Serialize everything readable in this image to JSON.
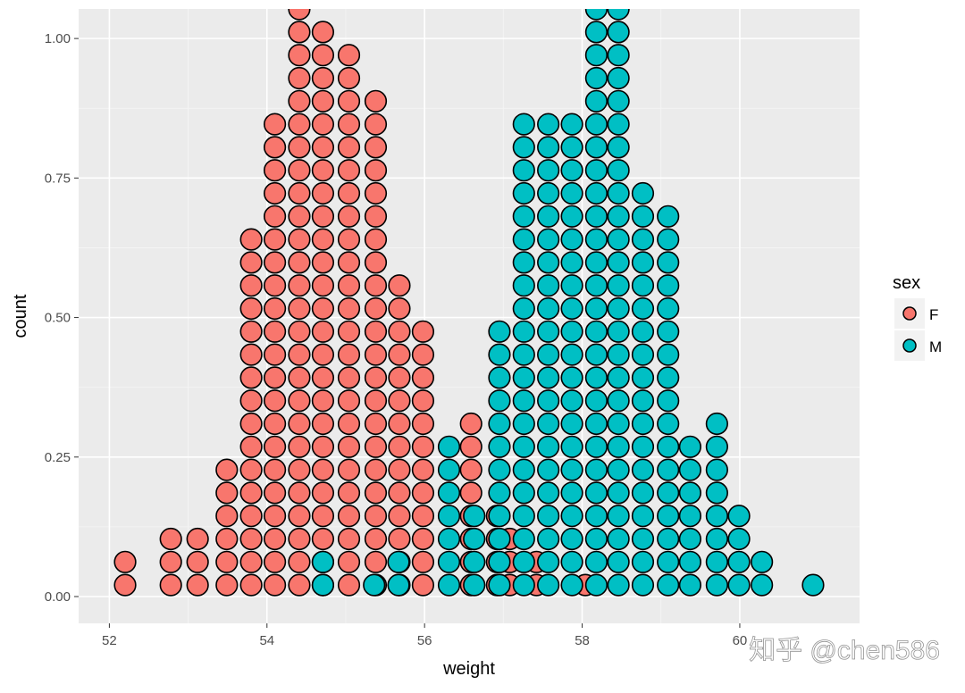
{
  "chart_data": {
    "type": "dotplot",
    "xlabel": "weight",
    "ylabel": "count",
    "xlim": [
      51.61,
      61.52
    ],
    "ylim": [
      -0.048,
      1.053
    ],
    "x_ticks": [
      52,
      54,
      56,
      58,
      60
    ],
    "x_tick_labels": [
      "52",
      "54",
      "56",
      "58",
      "60"
    ],
    "y_ticks": [
      0,
      0.25,
      0.5,
      0.75,
      1.0
    ],
    "y_tick_labels": [
      "0.00",
      "0.25",
      "0.50",
      "0.75",
      "1.00"
    ],
    "grid": true,
    "legend": {
      "title": "sex",
      "position": "right",
      "entries": [
        "F",
        "M"
      ]
    },
    "series": [
      {
        "name": "F",
        "color": "#F8766D",
        "stacks": [
          {
            "x": 52.2,
            "dots": 2
          },
          {
            "x": 52.78,
            "dots": 3
          },
          {
            "x": 53.12,
            "dots": 3
          },
          {
            "x": 53.49,
            "dots": 6
          },
          {
            "x": 53.8,
            "dots": 16
          },
          {
            "x": 54.1,
            "dots": 21
          },
          {
            "x": 54.41,
            "dots": 26
          },
          {
            "x": 54.71,
            "dots": 25
          },
          {
            "x": 55.04,
            "dots": 24
          },
          {
            "x": 55.38,
            "dots": 22
          },
          {
            "x": 55.68,
            "dots": 14
          },
          {
            "x": 55.98,
            "dots": 12
          },
          {
            "x": 56.59,
            "dots": 8
          },
          {
            "x": 56.92,
            "dots": 4
          },
          {
            "x": 57.08,
            "dots": 3
          },
          {
            "x": 57.42,
            "dots": 2
          },
          {
            "x": 58.04,
            "dots": 1
          }
        ]
      },
      {
        "name": "M",
        "color": "#00BFC4",
        "stacks": [
          {
            "x": 54.71,
            "dots": 2
          },
          {
            "x": 55.36,
            "dots": 1
          },
          {
            "x": 55.67,
            "dots": 2
          },
          {
            "x": 56.31,
            "dots": 7
          },
          {
            "x": 56.63,
            "dots": 4
          },
          {
            "x": 56.95,
            "dots": 12
          },
          {
            "x": 57.26,
            "dots": 21
          },
          {
            "x": 57.57,
            "dots": 21
          },
          {
            "x": 57.87,
            "dots": 21
          },
          {
            "x": 58.18,
            "dots": 26
          },
          {
            "x": 58.46,
            "dots": 26
          },
          {
            "x": 58.77,
            "dots": 18
          },
          {
            "x": 59.09,
            "dots": 17
          },
          {
            "x": 59.37,
            "dots": 7
          },
          {
            "x": 59.71,
            "dots": 8
          },
          {
            "x": 59.99,
            "dots": 4
          },
          {
            "x": 60.28,
            "dots": 2
          },
          {
            "x": 60.93,
            "dots": 1
          }
        ]
      }
    ]
  },
  "watermark": "知乎 @chen586"
}
